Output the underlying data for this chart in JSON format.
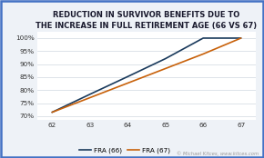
{
  "title_line1": "REDUCTION IN SURVIVOR BENEFITS DUE TO",
  "title_line2": "THE INCREASE IN FULL RETIREMENT AGE (66 VS 67)",
  "fra66_x": [
    62,
    63,
    64,
    65,
    66,
    66,
    67
  ],
  "fra66_y": [
    71.5,
    78.4,
    85.2,
    92.1,
    100.0,
    100.0,
    100.0
  ],
  "fra67_x": [
    62,
    63,
    64,
    65,
    66,
    67
  ],
  "fra67_y": [
    71.5,
    77.1,
    82.7,
    88.3,
    93.9,
    100.0
  ],
  "fra66_color": "#1a3a5c",
  "fra67_color": "#c8610a",
  "background_color": "#eef2f7",
  "plot_bg_color": "#ffffff",
  "border_color": "#4472c4",
  "grid_color": "#d0d8e0",
  "xlim": [
    61.6,
    67.4
  ],
  "ylim": [
    68.5,
    102.5
  ],
  "xticks": [
    62,
    63,
    64,
    65,
    66,
    67
  ],
  "yticks": [
    70,
    75,
    80,
    85,
    90,
    95,
    100
  ],
  "ytick_labels": [
    "70%",
    "75%",
    "80%",
    "85%",
    "90%",
    "95%",
    "100%"
  ],
  "legend_label_66": "FRA (66)",
  "legend_label_67": "FRA (67)",
  "watermark": "© Michael Kitces, www.kitces.com",
  "title_fontsize": 6.0,
  "tick_fontsize": 5.2,
  "legend_fontsize": 5.2,
  "watermark_fontsize": 3.8
}
